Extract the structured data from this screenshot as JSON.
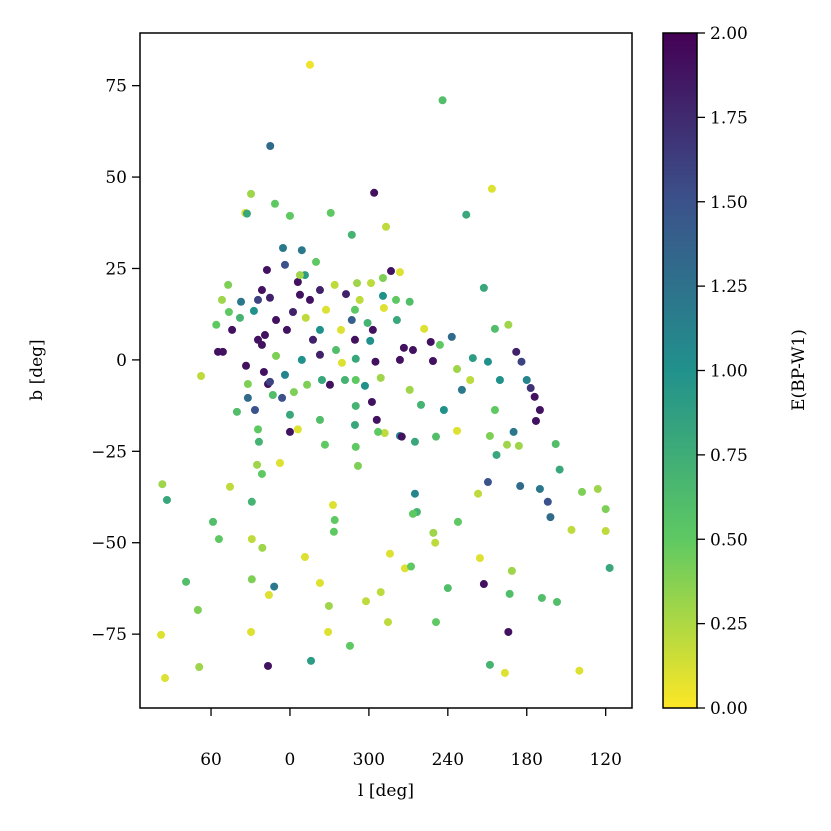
{
  "chart_data": {
    "type": "scatter",
    "xlabel": "l [deg]",
    "ylabel": "b [deg]",
    "clabel": "E(BP-W1)",
    "xlim": [
      114,
      -260
    ],
    "ylim": [
      -95.2,
      89.4
    ],
    "clim": [
      0,
      2
    ],
    "xticks": [
      60,
      0,
      {
        "value": -60,
        "label": "300"
      },
      {
        "value": -120,
        "label": "240"
      },
      {
        "value": -180,
        "label": "180"
      },
      {
        "value": -240,
        "label": "120"
      }
    ],
    "yticks": [
      {
        "value": -75,
        "label": "−75"
      },
      {
        "value": -50,
        "label": "−50"
      },
      {
        "value": -25,
        "label": "−25"
      },
      0,
      25,
      50,
      75
    ],
    "cticks": [
      {
        "value": 0,
        "label": "0.00"
      },
      {
        "value": 0.25,
        "label": "0.25"
      },
      {
        "value": 0.5,
        "label": "0.50"
      },
      {
        "value": 0.75,
        "label": "0.75"
      },
      {
        "value": 1,
        "label": "1.00"
      },
      {
        "value": 1.25,
        "label": "1.25"
      },
      {
        "value": 1.5,
        "label": "1.50"
      },
      {
        "value": 1.75,
        "label": "1.75"
      },
      {
        "value": 2,
        "label": "2.00"
      }
    ],
    "colormap": [
      "#fde725",
      "#5ec962",
      "#21918c",
      "#3b528b",
      "#440154"
    ],
    "x": [
      -15.2,
      -116,
      15,
      -64,
      -153.5,
      -134,
      29.6,
      34,
      11.4,
      0,
      -31,
      -73,
      -47,
      -9,
      97,
      93.5,
      58.5,
      54,
      79,
      70,
      98,
      95,
      69,
      67.6,
      45.6,
      29,
      29,
      21,
      29,
      12,
      29.6,
      16,
      16.7,
      -16,
      -11.4,
      -22.8,
      -29.6,
      -29,
      -45.6,
      -57.8,
      -69,
      -74.5,
      -76,
      -87.4,
      -92,
      -109,
      -110.4,
      -111,
      -120,
      -127.7,
      -147.4,
      -144.4,
      -152,
      -163.4,
      -167,
      -166,
      -168.7,
      -191.5,
      -203,
      -214,
      -220,
      -222,
      -234,
      -240,
      -240,
      -243,
      -95,
      -96.5,
      -93.5,
      -143,
      -150.5,
      -175,
      -190,
      -198,
      -196,
      -205,
      -202,
      -187,
      -190,
      -186,
      -183,
      -180,
      -172,
      -176,
      -166,
      -155.8,
      -147.4,
      -150.5,
      -159.6,
      -155.8,
      -152,
      -157,
      -165,
      -174,
      -170,
      -139,
      -137,
      -127,
      -130.7,
      -123,
      -114,
      -107,
      -108.7,
      -117,
      -111,
      -127,
      -102,
      -99.6,
      -91,
      -83.6,
      -95,
      -93.5,
      -83.6,
      -86.6,
      -81.3,
      -91,
      -83.6,
      -76.8,
      -70.7,
      -80.6,
      -72,
      -85,
      -67,
      -66,
      -62.3,
      -57,
      -69,
      -65,
      -61,
      -59,
      -49.4,
      -42.6,
      -53,
      -47,
      -38.8,
      -35,
      -50,
      -50,
      -50,
      -49.4,
      -50,
      -51.7,
      -32.7,
      -34,
      -33.4,
      -26.6,
      -22.8,
      -30.4,
      -24.3,
      -22.8,
      -17.5,
      -22.8,
      -15.2,
      -22.8,
      -11.4,
      -19.8,
      -6,
      -7.6,
      -2.3,
      2.3,
      10.6,
      15.2,
      3.8,
      5.3,
      17.5,
      21.3,
      24.3,
      27.4,
      37.2,
      38,
      44,
      46.4,
      51.7,
      47,
      56,
      51,
      54.7,
      24.3,
      21.3,
      19,
      10.6,
      3.8,
      -3,
      6,
      0,
      0,
      -6,
      13,
      24.3,
      23.6,
      25,
      21.3,
      7.6,
      32,
      32,
      40.3,
      16.7,
      19.8,
      32.7,
      26.6,
      15.2,
      -41.8,
      -39.5,
      -71.4,
      -70.7,
      -61.6,
      -51,
      -34,
      -7.6,
      -12,
      -27.4,
      -49.4,
      -63,
      33.4,
      -9,
      -13
    ],
    "y": [
      80.7,
      71,
      58.5,
      45.7,
      46.8,
      39.7,
      45.4,
      40.2,
      42.7,
      39.4,
      40.2,
      36.4,
      34.2,
      30,
      -34,
      -38.3,
      -44.3,
      -49,
      -60.7,
      -68.4,
      -75.2,
      -87,
      -84,
      -4.4,
      -34.7,
      -38.8,
      -49,
      -51.4,
      -60,
      -62,
      -74.4,
      -64.3,
      -83.7,
      -82.3,
      -53.9,
      -61,
      -67.3,
      -74.4,
      -78.2,
      -66,
      -63.5,
      -71.7,
      -53,
      -57,
      -56.5,
      -47.3,
      -50,
      -71.7,
      -62.4,
      -44.3,
      -61.3,
      -54.2,
      -83.4,
      -85.6,
      -64,
      -74.4,
      -57.7,
      -65.1,
      -66.2,
      -46.5,
      -85,
      -36.1,
      -35.3,
      -40.8,
      -46.8,
      -56.9,
      -36.6,
      -41.6,
      -42.1,
      -36.6,
      -33.4,
      -34.5,
      -35.3,
      -43,
      -38.8,
      -30,
      -23,
      -16.7,
      -13.7,
      -10.1,
      -7.7,
      -5.5,
      2.2,
      -0.5,
      9.6,
      8.5,
      19.7,
      -0.5,
      -5.5,
      -13.7,
      -20.8,
      -26,
      -23.2,
      -23.5,
      -19.7,
      0.5,
      -5.5,
      -2.5,
      -8.2,
      6.3,
      4.1,
      4.9,
      -0.3,
      -13.7,
      -21,
      -19.4,
      8.5,
      -12.3,
      -8.2,
      -20.8,
      -22.4,
      2.7,
      0,
      3.3,
      10.9,
      15.9,
      24,
      24.3,
      22.4,
      16.4,
      -20,
      -21,
      -19.7,
      -16.4,
      -11.5,
      -7.1,
      -4.9,
      -0.5,
      5.2,
      10.1,
      13.7,
      18,
      16.4,
      10.9,
      8.2,
      2.7,
      0.3,
      -5.5,
      -12.6,
      -17.8,
      -23.8,
      -29,
      -39.7,
      -43.8,
      -47,
      -23.2,
      -16.4,
      -6.8,
      -5.5,
      1.4,
      5.5,
      8.2,
      16.4,
      19.1,
      23.2,
      26.8,
      21.3,
      17.8,
      13.1,
      8.2,
      10.9,
      17,
      26,
      30.6,
      24.6,
      19.1,
      16.4,
      13.4,
      15.9,
      11.5,
      8.2,
      13.1,
      16.4,
      20.5,
      9.6,
      2.2,
      2.2,
      5.5,
      4.1,
      6.8,
      1.1,
      -4.1,
      -8.8,
      -10.4,
      -15,
      -19.7,
      -19,
      -9.6,
      -19,
      -22.4,
      -28.7,
      -31.2,
      -28.2,
      -6.6,
      -10.4,
      -14.2,
      -6.6,
      -3.3,
      40,
      -13.7,
      -6,
      -5.5,
      -0.8,
      14.2,
      17.5,
      21,
      21,
      20.5,
      23.2,
      11.5,
      13.7,
      5.5,
      8.2,
      -1.6,
      0,
      -6.8
    ],
    "c": [
      0.05,
      0.6,
      1.3,
      1.9,
      0.1,
      0.8,
      0.3,
      0.1,
      0.5,
      0.5,
      0.5,
      0.2,
      0.7,
      1.2,
      0.3,
      0.8,
      0.6,
      0.5,
      0.6,
      0.4,
      0.1,
      0.1,
      0.3,
      0.2,
      0.2,
      0.7,
      0.2,
      0.3,
      0.4,
      1.2,
      0.1,
      0.1,
      1.9,
      0.9,
      0.1,
      0.1,
      0.3,
      0.1,
      0.5,
      0.2,
      0.2,
      0.2,
      0.1,
      0.1,
      0.5,
      0.3,
      0.2,
      0.5,
      0.6,
      0.5,
      1.9,
      0.1,
      0.7,
      0.1,
      0.6,
      1.9,
      0.3,
      0.6,
      0.6,
      0.2,
      0.1,
      0.4,
      0.3,
      0.4,
      0.2,
      0.8,
      1.1,
      0.7,
      0.5,
      0.2,
      1.5,
      1.3,
      1.2,
      1.3,
      1.5,
      0.8,
      0.6,
      1.9,
      1.9,
      1.9,
      1.7,
      1.1,
      1.8,
      1.6,
      0.3,
      0.6,
      0.8,
      1,
      1,
      0.5,
      0.4,
      0.8,
      0.3,
      0.3,
      1.2,
      0.9,
      0.2,
      0.3,
      1.2,
      1.3,
      0.5,
      1.9,
      1.9,
      1,
      0.6,
      0.1,
      0.1,
      0.7,
      0.3,
      1.1,
      0.8,
      1.9,
      1.9,
      1.9,
      0.8,
      0.6,
      0.1,
      1.9,
      0.4,
      0.5,
      0.2,
      1.9,
      0.5,
      1.9,
      1.9,
      1,
      0.3,
      1.9,
      1,
      0.7,
      0.5,
      1.8,
      0.2,
      1.4,
      0.1,
      0.6,
      0.8,
      0.5,
      0.7,
      0.8,
      0.5,
      0.4,
      0.1,
      0.5,
      0.5,
      0.5,
      0.6,
      1.9,
      0.8,
      1.8,
      1.8,
      1,
      1.9,
      1.8,
      0.9,
      0.5,
      1.9,
      1.9,
      1.8,
      1.9,
      1.9,
      1.8,
      1.5,
      1.2,
      1.9,
      1.9,
      1.6,
      1,
      1.2,
      0.7,
      1.9,
      0.5,
      0.3,
      0.4,
      0.5,
      1.9,
      1.9,
      1.9,
      1.9,
      1.9,
      0.4,
      1.1,
      0.4,
      1.5,
      0.8,
      1.9,
      0.1,
      0.6,
      0.5,
      0.7,
      0.3,
      0.5,
      0.1,
      0.4,
      1.3,
      0.6,
      1.9,
      1.9,
      0.8,
      1.5,
      1.6,
      0.7,
      0.1,
      0.1,
      1,
      0.2,
      0.3,
      0.2,
      0.3,
      0.2,
      0.1,
      1.9,
      1.9,
      1.9,
      1,
      0.4
    ]
  }
}
